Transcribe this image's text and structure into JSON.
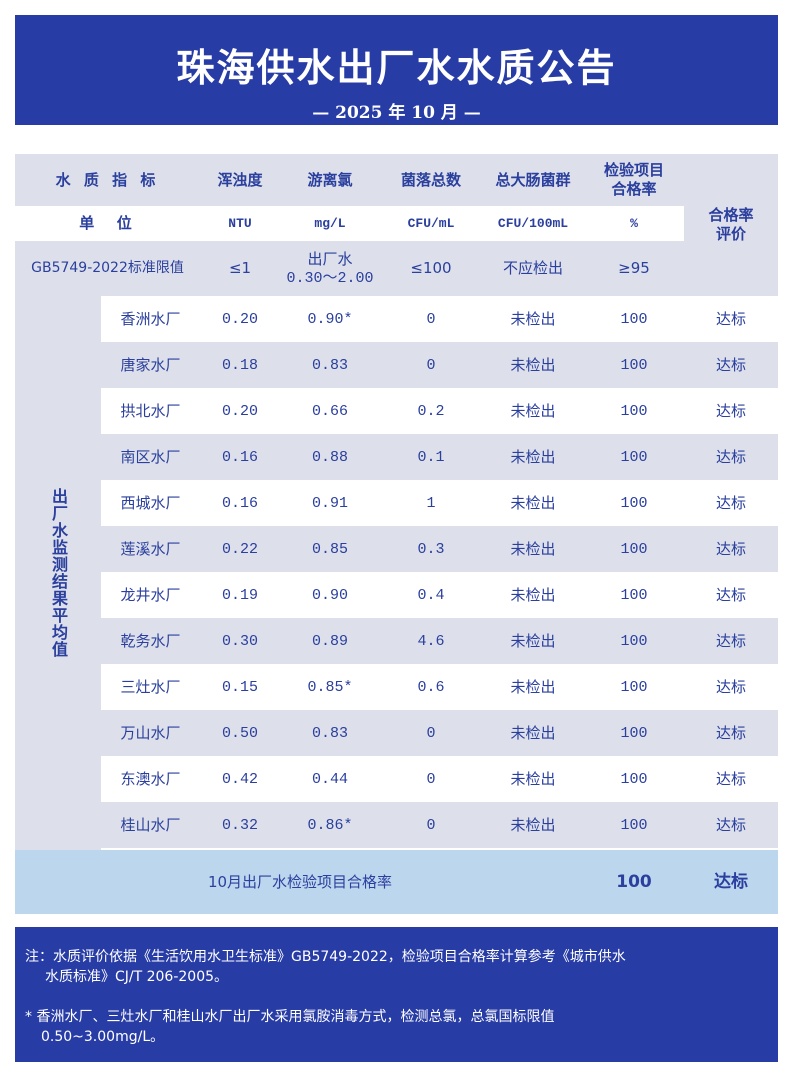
{
  "header": {
    "title": "珠海供水出厂水水质公告",
    "subtitle": "— 2025 年 10 月 —"
  },
  "table": {
    "headers": {
      "indicator": "水 质 指 标",
      "turbidity": "浑浊度",
      "chlorine": "游离氯",
      "colony": "菌落总数",
      "coliform": "总大肠菌群",
      "rate": "检验项目合格率",
      "evaluation": "合格率评价"
    },
    "units": {
      "label": "单  位",
      "turbidity": "NTU",
      "chlorine": "mg/L",
      "colony": "CFU/mL",
      "coliform": "CFU/100mL",
      "rate": "%"
    },
    "limits": {
      "label": "GB5749-2022标准限值",
      "turbidity": "≤1",
      "chlorine_1": "出厂水",
      "chlorine_2": "0.30～2.00",
      "colony": "≤100",
      "coliform": "不应检出",
      "rate": "≥95"
    },
    "side_label": "出厂水监测结果平均值",
    "rows": [
      {
        "plant": "香洲水厂",
        "turbidity": "0.20",
        "chlorine": "0.90*",
        "colony": "0",
        "coliform": "未检出",
        "rate": "100",
        "eval": "达标"
      },
      {
        "plant": "唐家水厂",
        "turbidity": "0.18",
        "chlorine": "0.83",
        "colony": "0",
        "coliform": "未检出",
        "rate": "100",
        "eval": "达标"
      },
      {
        "plant": "拱北水厂",
        "turbidity": "0.20",
        "chlorine": "0.66",
        "colony": "0.2",
        "coliform": "未检出",
        "rate": "100",
        "eval": "达标"
      },
      {
        "plant": "南区水厂",
        "turbidity": "0.16",
        "chlorine": "0.88",
        "colony": "0.1",
        "coliform": "未检出",
        "rate": "100",
        "eval": "达标"
      },
      {
        "plant": "西城水厂",
        "turbidity": "0.16",
        "chlorine": "0.91",
        "colony": "1",
        "coliform": "未检出",
        "rate": "100",
        "eval": "达标"
      },
      {
        "plant": "莲溪水厂",
        "turbidity": "0.22",
        "chlorine": "0.85",
        "colony": "0.3",
        "coliform": "未检出",
        "rate": "100",
        "eval": "达标"
      },
      {
        "plant": "龙井水厂",
        "turbidity": "0.19",
        "chlorine": "0.90",
        "colony": "0.4",
        "coliform": "未检出",
        "rate": "100",
        "eval": "达标"
      },
      {
        "plant": "乾务水厂",
        "turbidity": "0.30",
        "chlorine": "0.89",
        "colony": "4.6",
        "coliform": "未检出",
        "rate": "100",
        "eval": "达标"
      },
      {
        "plant": "三灶水厂",
        "turbidity": "0.15",
        "chlorine": "0.85*",
        "colony": "0.6",
        "coliform": "未检出",
        "rate": "100",
        "eval": "达标"
      },
      {
        "plant": "万山水厂",
        "turbidity": "0.50",
        "chlorine": "0.83",
        "colony": "0",
        "coliform": "未检出",
        "rate": "100",
        "eval": "达标"
      },
      {
        "plant": "东澳水厂",
        "turbidity": "0.42",
        "chlorine": "0.44",
        "colony": "0",
        "coliform": "未检出",
        "rate": "100",
        "eval": "达标"
      },
      {
        "plant": "桂山水厂",
        "turbidity": "0.32",
        "chlorine": "0.86*",
        "colony": "0",
        "coliform": "未检出",
        "rate": "100",
        "eval": "达标"
      }
    ],
    "summary": {
      "label": "10月出厂水检验项目合格率",
      "rate": "100",
      "eval": "达标"
    }
  },
  "notes": {
    "note1_line1": "注：水质评价依据《生活饮用水卫生标准》GB5749-2022，检验项目合格率计算参考《城市供水",
    "note1_line2": "水质标准》CJ/T 206-2005。",
    "note2_line1": "* 香洲水厂、三灶水厂和桂山水厂出厂水采用氯胺消毒方式，检测总氯，总氯国标限值",
    "note2_line2": "0.50~3.00mg/L。"
  },
  "colors": {
    "header_bg": "#283ca6",
    "text": "#2a3f9e",
    "grey_row": "#dde0ea",
    "summary_bg": "#bcd6ee"
  }
}
